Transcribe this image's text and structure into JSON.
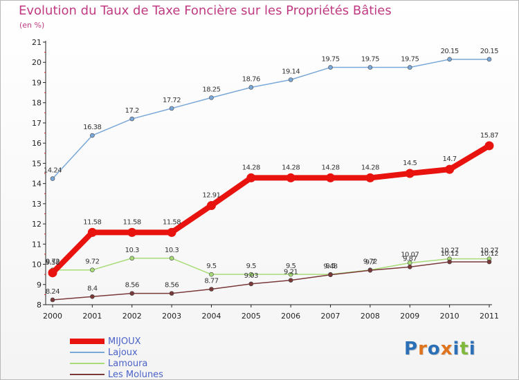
{
  "title": "Evolution du Taux de Taxe Foncière sur les Propriétés Bâties",
  "unit": "(en %)",
  "logo": {
    "text": "Proxiti",
    "letters": [
      "P",
      "r",
      "o",
      "x",
      "i",
      "t",
      "i"
    ],
    "colors": [
      "#2b6fb6",
      "#e0731b",
      "#2b6fb6",
      "#e0731b",
      "#2b6fb6",
      "#7fb83b",
      "#2b6fb6"
    ]
  },
  "chart_data": {
    "type": "line",
    "title": "Evolution du Taux de Taxe Foncière sur les Propriétés Bâties",
    "ylabel": "(en %)",
    "xlabel": "",
    "categories": [
      "2000",
      "2001",
      "2002",
      "2003",
      "2004",
      "2005",
      "2006",
      "2007",
      "2008",
      "2009",
      "2010",
      "2011"
    ],
    "ylim": [
      8,
      21
    ],
    "yticks": [
      "8",
      "9",
      "10",
      "11",
      "12",
      "13",
      "14",
      "15",
      "16",
      "17",
      "18",
      "19",
      "20",
      "21"
    ],
    "grid": false,
    "legend": "bottom-left",
    "series": [
      {
        "name": "MIJOUX",
        "color": "#e8120e",
        "bold": true,
        "values": [
          9.58,
          11.58,
          11.58,
          11.58,
          12.91,
          14.28,
          14.28,
          14.28,
          14.28,
          14.5,
          14.7,
          15.87
        ],
        "labels": [
          "9.58",
          "11.58",
          "11.58",
          "11.58",
          "12.91",
          "14.28",
          "14.28",
          "14.28",
          "14.28",
          "14.5",
          "14.7",
          "15.87"
        ]
      },
      {
        "name": "Lajoux",
        "color": "#7aa8d8",
        "bold": false,
        "values": [
          14.24,
          16.38,
          17.2,
          17.72,
          18.25,
          18.76,
          19.14,
          19.75,
          19.75,
          19.75,
          20.15,
          20.15
        ],
        "labels": [
          "14.24",
          "16.38",
          "17.2",
          "17.72",
          "18.25",
          "18.76",
          "19.14",
          "19.75",
          "19.75",
          "19.75",
          "20.15",
          "20.15"
        ]
      },
      {
        "name": "Lamoura",
        "color": "#a8dc78",
        "bold": false,
        "values": [
          9.72,
          9.72,
          10.3,
          10.3,
          9.5,
          9.5,
          9.5,
          9.5,
          9.72,
          10.07,
          10.27,
          10.27
        ],
        "labels": [
          "9.72",
          "9.72",
          "10.3",
          "10.3",
          "9.5",
          "9.5",
          "9.5",
          "9.5",
          "9.72",
          "10.07",
          "10.27",
          "10.27"
        ]
      },
      {
        "name": "Les Molunes",
        "color": "#7a3838",
        "bold": false,
        "values": [
          8.24,
          8.4,
          8.56,
          8.56,
          8.77,
          9.03,
          9.21,
          9.48,
          9.7,
          9.87,
          10.12,
          10.12
        ],
        "labels": [
          "8.24",
          "8.4",
          "8.56",
          "8.56",
          "8.77",
          "9.03",
          "9.21",
          "9.48",
          "9.7",
          "9.87",
          "10.12",
          "10.12"
        ]
      }
    ]
  }
}
